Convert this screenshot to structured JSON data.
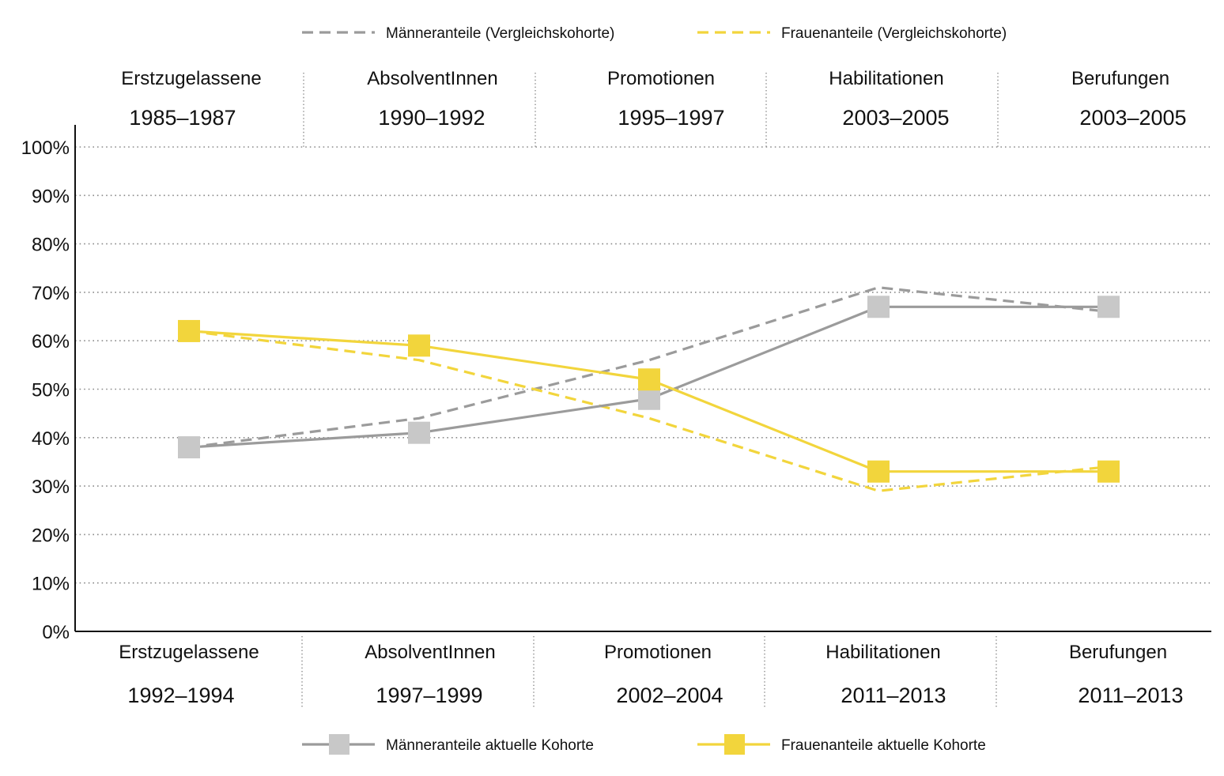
{
  "chart_data": {
    "type": "line",
    "categories_top": [
      {
        "name": "Erstzugelassene",
        "period": "1985–1987"
      },
      {
        "name": "AbsolventInnen",
        "period": "1990–1992"
      },
      {
        "name": "Promotionen",
        "period": "1995–1997"
      },
      {
        "name": "Habilitationen",
        "period": "2003–2005"
      },
      {
        "name": "Berufungen",
        "period": "2003–2005"
      }
    ],
    "categories_bottom": [
      {
        "name": "Erstzugelassene",
        "period": "1992–1994"
      },
      {
        "name": "AbsolventInnen",
        "period": "1997–1999"
      },
      {
        "name": "Promotionen",
        "period": "2002–2004"
      },
      {
        "name": "Habilitationen",
        "period": "2011–2013"
      },
      {
        "name": "Berufungen",
        "period": "2011–2013"
      }
    ],
    "y_ticks": [
      "0%",
      "10%",
      "20%",
      "30%",
      "40%",
      "50%",
      "60%",
      "70%",
      "80%",
      "90%",
      "100%"
    ],
    "ylim": [
      0,
      100
    ],
    "grid": true,
    "series": [
      {
        "name": "Männeranteile (Vergleichskohorte)",
        "style": "dashed",
        "marker": false,
        "color": "#9b9b9b",
        "values": [
          38,
          44,
          56,
          71,
          66
        ]
      },
      {
        "name": "Frauenanteile (Vergleichskohorte)",
        "style": "dashed",
        "marker": false,
        "color": "#f2d53c",
        "values": [
          62,
          56,
          44,
          29,
          34
        ]
      },
      {
        "name": "Männeranteile aktuelle Kohorte",
        "style": "solid",
        "marker": true,
        "color": "#9b9b9b",
        "marker_color": "#c8c8c8",
        "values": [
          38,
          41,
          48,
          67,
          67
        ]
      },
      {
        "name": "Frauenanteile aktuelle Kohorte",
        "style": "solid",
        "marker": true,
        "color": "#f2d53c",
        "marker_color": "#f2d53c",
        "values": [
          62,
          59,
          52,
          33,
          33
        ]
      }
    ],
    "legend": {
      "top": [
        0,
        1
      ],
      "bottom": [
        2,
        3
      ]
    }
  }
}
